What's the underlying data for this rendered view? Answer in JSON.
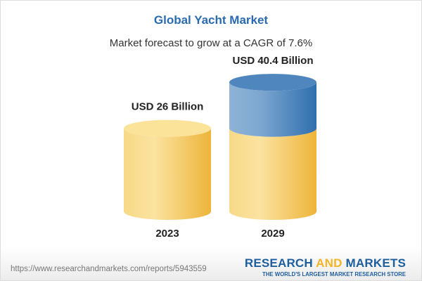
{
  "title": "Global Yacht Market",
  "subtitle": "Market forecast to grow at a CAGR of 7.6%",
  "chart_data": {
    "type": "bar",
    "style": "3d-cylinder",
    "categories": [
      "2023",
      "2029"
    ],
    "values": [
      26,
      40.4
    ],
    "data_labels": [
      "USD 26 Billion",
      "USD 40.4 Billion"
    ],
    "unit": "USD Billion",
    "colors": {
      "base": "#f3c04f",
      "growth": "#4a86bd"
    }
  },
  "footer": {
    "url": "https://www.researchandmarkets.com/reports/5943559",
    "logo_part1": "RESEARCH ",
    "logo_part2": "AND",
    "logo_part3": " MARKETS",
    "tagline": "THE WORLD'S LARGEST MARKET RESEARCH STORE"
  }
}
